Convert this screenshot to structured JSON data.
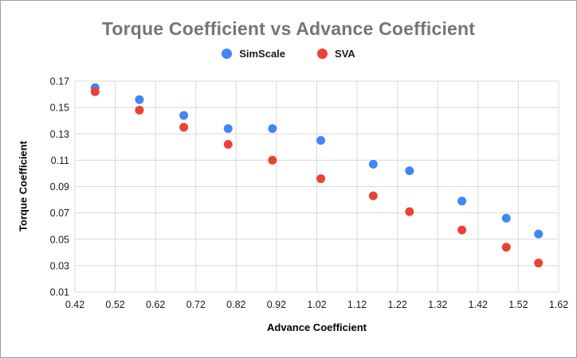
{
  "chart_data": {
    "type": "scatter",
    "title": "Torque Coefficient vs Advance Coefficient",
    "xlabel": "Advance Coefficient",
    "ylabel": "Torque Coefficient",
    "x": [
      0.47,
      0.58,
      0.69,
      0.8,
      0.91,
      1.03,
      1.16,
      1.25,
      1.38,
      1.49,
      1.57
    ],
    "series": [
      {
        "name": "SimScale",
        "color": "#4285F4",
        "values": [
          0.165,
          0.156,
          0.144,
          0.134,
          0.134,
          0.125,
          0.107,
          0.102,
          0.079,
          0.066,
          0.054
        ]
      },
      {
        "name": "SVA",
        "color": "#EA4335",
        "values": [
          0.162,
          0.148,
          0.135,
          0.122,
          0.11,
          0.096,
          0.083,
          0.071,
          0.057,
          0.044,
          0.032
        ]
      }
    ],
    "xlim": [
      0.42,
      1.62
    ],
    "ylim": [
      0.01,
      0.17
    ],
    "xticks": [
      0.42,
      0.52,
      0.62,
      0.72,
      0.82,
      0.92,
      1.02,
      1.12,
      1.22,
      1.32,
      1.42,
      1.52,
      1.62
    ],
    "yticks": [
      0.01,
      0.03,
      0.05,
      0.07,
      0.09,
      0.11,
      0.13,
      0.15,
      0.17
    ],
    "grid": true,
    "legend_position": "top",
    "marker_radius": 5.5,
    "colors": {
      "title_text": "#757575",
      "axis_text": "#1a1a1a",
      "grid_line": "#d9d9d9",
      "page_border": "#9e9e9e",
      "background": "#ffffff"
    }
  }
}
